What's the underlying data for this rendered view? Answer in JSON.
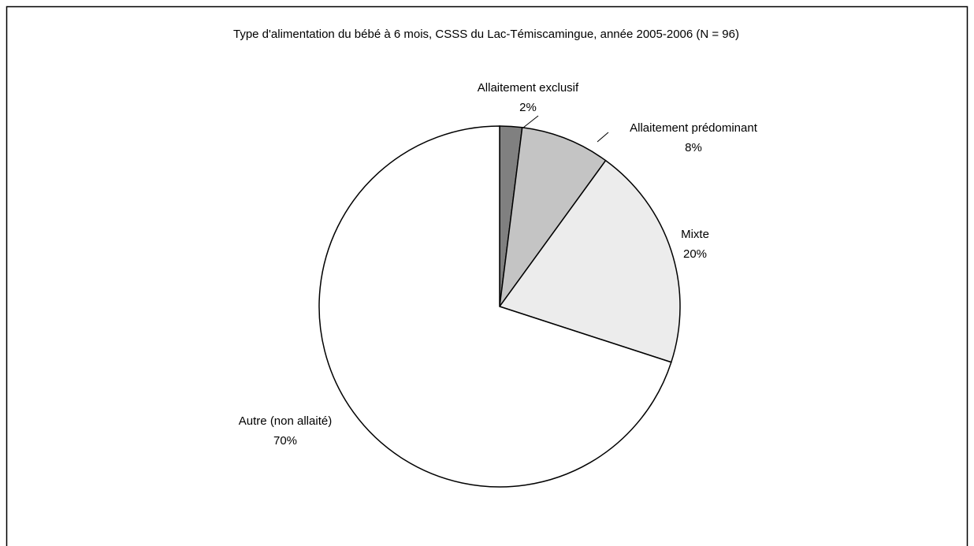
{
  "chart_data": {
    "type": "pie",
    "title": "Type d'alimentation du bébé à 6 mois, CSSS du Lac-Témiscamingue, année 2005-2006  (N = 96)",
    "categories": [
      "Allaitement exclusif",
      "Allaitement prédominant",
      "Mixte",
      "Autre (non allaité)"
    ],
    "values": [
      2,
      8,
      20,
      70
    ],
    "value_labels": [
      "2%",
      "8%",
      "20%",
      "70%"
    ],
    "colors": [
      "#808080",
      "#c4c4c4",
      "#ececec",
      "#ffffff"
    ]
  }
}
